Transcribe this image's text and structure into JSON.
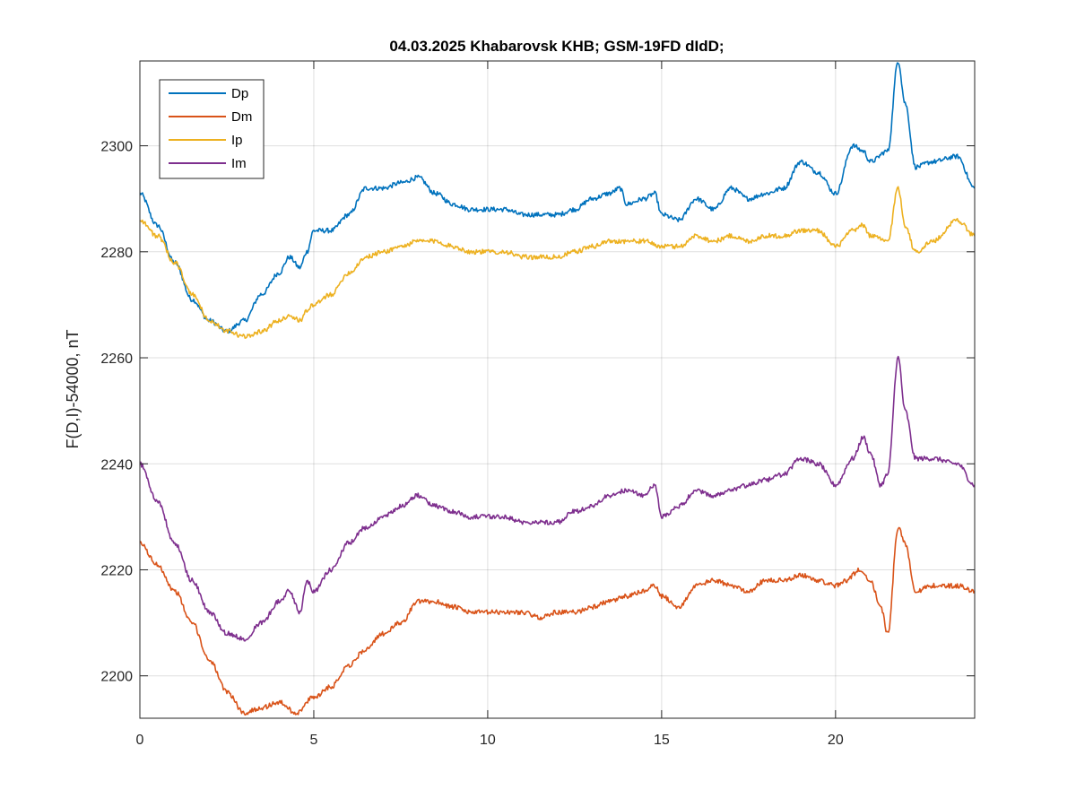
{
  "chart_data": {
    "type": "line",
    "title": "04.03.2025  Khabarovsk KHB; GSM-19FD dIdD;",
    "xlabel": "",
    "ylabel": "F(D,I)-54000, nT",
    "xlim": [
      0,
      24
    ],
    "ylim": [
      2192,
      2316
    ],
    "xticks": [
      0,
      5,
      10,
      15,
      20
    ],
    "yticks": [
      2200,
      2220,
      2240,
      2260,
      2280,
      2300
    ],
    "grid": true,
    "legend": "top-left",
    "series": [
      {
        "name": "Dp",
        "color": "#0072BD",
        "x": [
          0,
          0.5,
          1,
          1.5,
          2,
          2.5,
          3,
          3.5,
          4,
          4.3,
          4.6,
          4.8,
          5,
          5.5,
          6,
          6.5,
          7,
          7.5,
          8,
          8.5,
          9,
          9.5,
          10,
          10.5,
          11,
          11.5,
          12,
          12.5,
          13,
          13.5,
          13.8,
          14,
          14.5,
          14.8,
          15,
          15.5,
          16,
          16.5,
          17,
          17.5,
          18,
          18.5,
          19,
          19.5,
          20,
          20.5,
          20.8,
          21,
          21.5,
          21.8,
          22,
          22.3,
          22.8,
          23.5,
          24
        ],
        "values": [
          2291,
          2285,
          2278,
          2271,
          2267,
          2265,
          2267,
          2272,
          2276,
          2279,
          2277,
          2280,
          2284,
          2284,
          2287,
          2292,
          2292,
          2293,
          2294,
          2291,
          2289,
          2288,
          2288,
          2288,
          2287,
          2287,
          2287,
          2288,
          2290,
          2291,
          2292,
          2289,
          2290,
          2291,
          2287,
          2286,
          2290,
          2288,
          2292,
          2290,
          2291,
          2292,
          2297,
          2295,
          2291,
          2300,
          2299,
          2297,
          2299,
          2316,
          2308,
          2296,
          2297,
          2298,
          2292
        ]
      },
      {
        "name": "Dm",
        "color": "#D95319",
        "x": [
          0,
          0.5,
          1,
          1.5,
          2,
          2.5,
          3,
          3.5,
          4,
          4.5,
          5,
          5.5,
          6,
          6.5,
          7,
          7.5,
          8,
          8.5,
          9,
          9.5,
          10,
          10.5,
          11,
          11.5,
          12,
          12.5,
          13,
          13.5,
          14,
          14.5,
          14.8,
          15,
          15.5,
          16,
          16.5,
          17,
          17.5,
          18,
          18.5,
          19,
          19.5,
          20,
          20.3,
          20.7,
          21,
          21.3,
          21.5,
          21.8,
          22,
          22.3,
          22.8,
          23.5,
          24
        ],
        "values": [
          2225,
          2221,
          2216,
          2210,
          2203,
          2197,
          2193,
          2194,
          2195,
          2193,
          2196,
          2198,
          2202,
          2205,
          2208,
          2210,
          2214,
          2214,
          2213,
          2212,
          2212,
          2212,
          2212,
          2211,
          2212,
          2212,
          2213,
          2214,
          2215,
          2216,
          2217,
          2215,
          2213,
          2217,
          2218,
          2217,
          2216,
          2218,
          2218,
          2219,
          2218,
          2217,
          2218,
          2220,
          2218,
          2213,
          2208,
          2228,
          2225,
          2216,
          2217,
          2217,
          2216
        ]
      },
      {
        "name": "Ip",
        "color": "#EDB120",
        "x": [
          0,
          0.5,
          1,
          1.5,
          2,
          2.5,
          3,
          3.5,
          4,
          4.3,
          4.6,
          4.8,
          5,
          5.5,
          6,
          6.5,
          7,
          7.5,
          8,
          8.5,
          9,
          9.5,
          10,
          10.5,
          11,
          11.5,
          12,
          12.5,
          13,
          13.5,
          14,
          14.5,
          15,
          15.5,
          16,
          16.5,
          17,
          17.5,
          18,
          18.5,
          19,
          19.5,
          20,
          20.5,
          20.8,
          21,
          21.5,
          21.8,
          22,
          22.3,
          22.8,
          23.5,
          24
        ],
        "values": [
          2286,
          2283,
          2278,
          2272,
          2267,
          2265,
          2264,
          2265,
          2267,
          2268,
          2267,
          2269,
          2270,
          2272,
          2276,
          2279,
          2280,
          2281,
          2282,
          2282,
          2281,
          2280,
          2280,
          2280,
          2279,
          2279,
          2279,
          2280,
          2281,
          2282,
          2282,
          2282,
          2281,
          2281,
          2283,
          2282,
          2283,
          2282,
          2283,
          2283,
          2284,
          2284,
          2281,
          2284,
          2285,
          2283,
          2282,
          2292,
          2285,
          2280,
          2282,
          2286,
          2283
        ]
      },
      {
        "name": "Im",
        "color": "#7E2F8E",
        "x": [
          0,
          0.5,
          1,
          1.5,
          2,
          2.5,
          3,
          3.5,
          4,
          4.3,
          4.6,
          4.8,
          5,
          5.5,
          6,
          6.5,
          7,
          7.5,
          8,
          8.5,
          9,
          9.5,
          10,
          10.5,
          11,
          11.5,
          12,
          12.5,
          13,
          13.5,
          14,
          14.5,
          14.8,
          15,
          15.5,
          16,
          16.5,
          17,
          17.5,
          18,
          18.5,
          19,
          19.5,
          20,
          20.5,
          20.8,
          21,
          21.3,
          21.5,
          21.8,
          22,
          22.3,
          22.8,
          23.5,
          24
        ],
        "values": [
          2240,
          2233,
          2225,
          2218,
          2212,
          2208,
          2207,
          2210,
          2214,
          2216,
          2212,
          2218,
          2216,
          2220,
          2225,
          2228,
          2230,
          2232,
          2234,
          2232,
          2231,
          2230,
          2230,
          2230,
          2229,
          2229,
          2229,
          2231,
          2232,
          2234,
          2235,
          2234,
          2236,
          2230,
          2232,
          2235,
          2234,
          2235,
          2236,
          2237,
          2238,
          2241,
          2240,
          2236,
          2241,
          2245,
          2242,
          2236,
          2238,
          2260,
          2250,
          2241,
          2241,
          2240,
          2236
        ]
      }
    ]
  }
}
